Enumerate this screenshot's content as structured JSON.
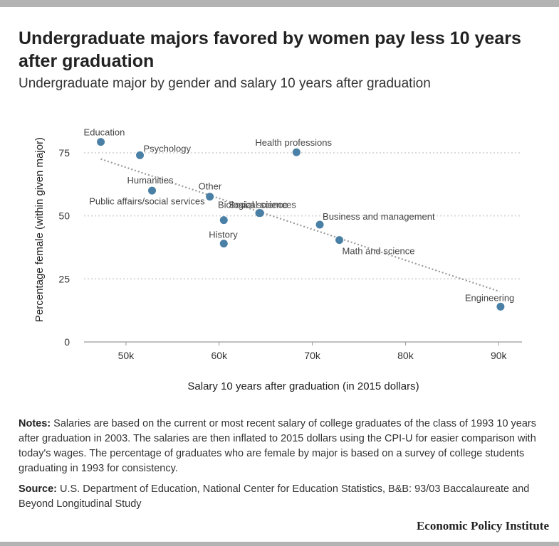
{
  "title": "Undergraduate majors favored by women pay less 10 years after graduation",
  "subtitle": "Undergraduate major by gender and salary 10 years after graduation",
  "notes_label": "Notes:",
  "notes_text": "Salaries are based on the current or most recent salary of college graduates of the class of 1993 10 years after graduation in 2003. The salaries are then inflated to 2015 dollars using the CPI-U for easier comparison with today's wages. The percentage of graduates who are female by major is based on a survey of college students graduating in 1993 for consistency.",
  "source_label": "Source:",
  "source_text": "U.S. Department of Education, National Center for Education Statistics, B&B: 93/03 Baccalaureate and Beyond Longitudinal Study",
  "brand": "Economic Policy Institute",
  "colors": {
    "point": "#4a7fa6",
    "trend": "#999999",
    "grid": "#d9d9d9",
    "axis": "#999999"
  },
  "chart_data": {
    "type": "scatter",
    "title": "Undergraduate majors favored by women pay less 10 years after graduation",
    "subtitle": "Undergraduate major by gender and salary 10 years after graduation",
    "xlabel": "Salary 10 years after graduation (in 2015 dollars)",
    "ylabel": "Percentage female (within given major)",
    "xlim": [
      45500,
      92500
    ],
    "ylim": [
      0,
      82
    ],
    "x_ticks": [
      50000,
      60000,
      70000,
      80000,
      90000
    ],
    "x_tick_labels": [
      "50k",
      "60k",
      "70k",
      "80k",
      "90k"
    ],
    "y_ticks": [
      0,
      25,
      50,
      75
    ],
    "y_tick_labels": [
      "0",
      "25",
      "50",
      "75"
    ],
    "grid": "horizontal dotted",
    "trendline": {
      "x": [
        47300,
        90100
      ],
      "y": [
        72.5,
        20.0
      ]
    },
    "points": [
      {
        "label": "Education",
        "x": 47300,
        "y": 79.3
      },
      {
        "label": "Psychology",
        "x": 51500,
        "y": 74.0
      },
      {
        "label": "Health professions",
        "x": 68300,
        "y": 75.2
      },
      {
        "label": "Humanities",
        "x": 52800,
        "y": 60.0
      },
      {
        "label": "Other",
        "x": 59000,
        "y": 57.6
      },
      {
        "label": "Public affairs/social services",
        "x": 60500,
        "y": 48.3
      },
      {
        "label": "Biological sciences",
        "x": 64300,
        "y": 51.1
      },
      {
        "label": "Social science",
        "x": 64400,
        "y": 51.1
      },
      {
        "label": "History",
        "x": 60500,
        "y": 39.0
      },
      {
        "label": "Business and management",
        "x": 70800,
        "y": 46.5
      },
      {
        "label": "Math and science",
        "x": 72900,
        "y": 40.4
      },
      {
        "label": "Engineering",
        "x": 90200,
        "y": 14.0
      }
    ]
  }
}
